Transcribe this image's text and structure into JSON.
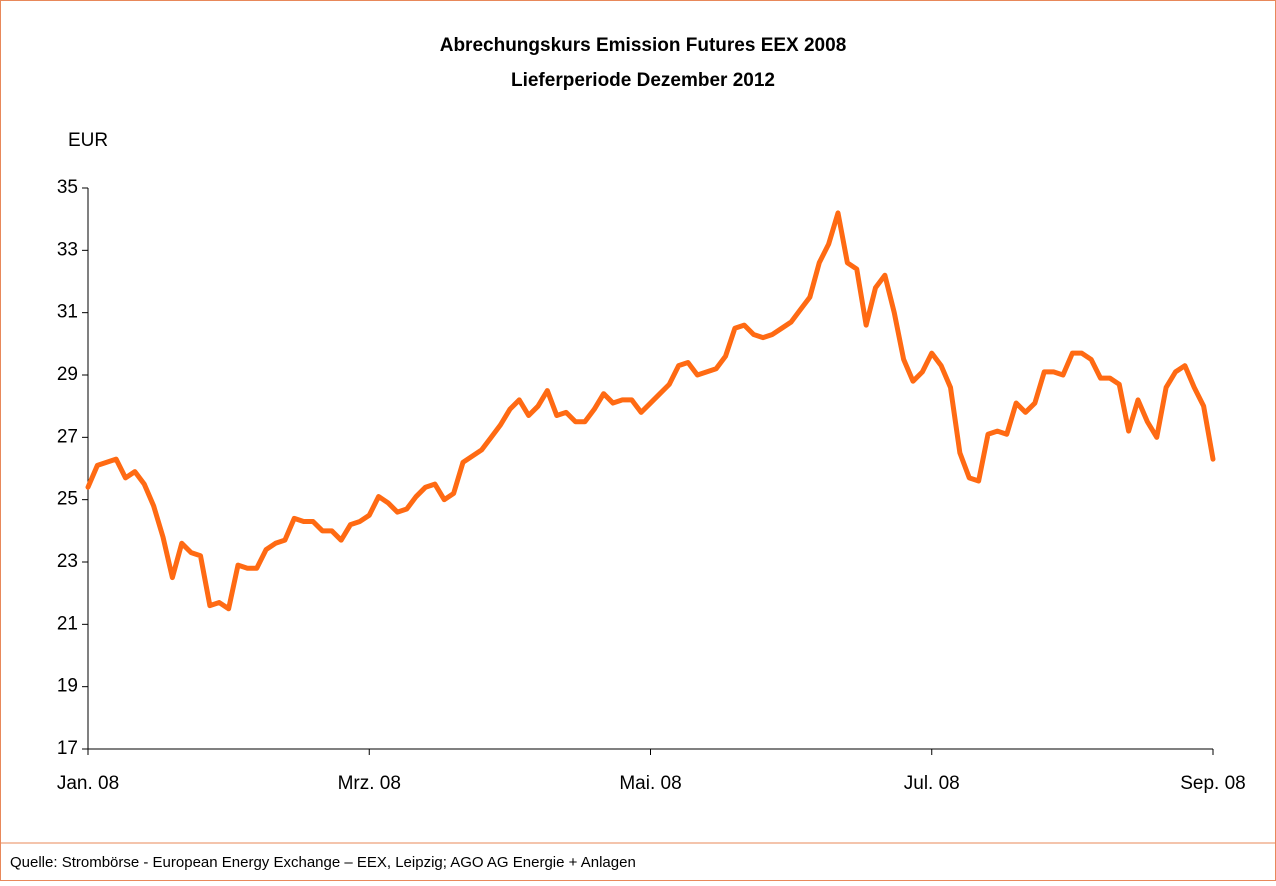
{
  "chart_data": {
    "type": "line",
    "title": "Abrechungskurs Emission Futures EEX 2008",
    "subtitle": "Lieferperiode Dezember 2012",
    "y_label": "EUR",
    "source": "Quelle: Strombörse - European Energy Exchange – EEX, Leipzig; AGO AG Energie + Anlagen",
    "categories": [
      "Jan. 08",
      null,
      null,
      null,
      null,
      null,
      null,
      null,
      null,
      null,
      null,
      null,
      null,
      null,
      null,
      null,
      null,
      null,
      null,
      null,
      null,
      null,
      null,
      null,
      null,
      null,
      null,
      null,
      null,
      null,
      "Mrz. 08",
      null,
      null,
      null,
      null,
      null,
      null,
      null,
      null,
      null,
      null,
      null,
      null,
      null,
      null,
      null,
      null,
      null,
      null,
      null,
      null,
      null,
      null,
      null,
      null,
      null,
      null,
      null,
      null,
      null,
      "Mai. 08",
      null,
      null,
      null,
      null,
      null,
      null,
      null,
      null,
      null,
      null,
      null,
      null,
      null,
      null,
      null,
      null,
      null,
      null,
      null,
      null,
      null,
      null,
      null,
      null,
      null,
      null,
      null,
      null,
      null,
      "Jul. 08",
      null,
      null,
      null,
      null,
      null,
      null,
      null,
      null,
      null,
      null,
      null,
      null,
      null,
      null,
      null,
      null,
      null,
      null,
      null,
      null,
      null,
      null,
      null,
      null,
      null,
      null,
      null,
      null,
      null,
      "Sep. 08"
    ],
    "series": [
      {
        "name": "Abrechungskurs",
        "color": "#ff6a13",
        "values": [
          25.4,
          26.1,
          26.2,
          26.3,
          25.7,
          25.9,
          25.5,
          24.8,
          23.8,
          22.5,
          23.6,
          23.3,
          23.2,
          21.6,
          21.7,
          21.5,
          22.9,
          22.8,
          22.8,
          23.4,
          23.6,
          23.7,
          24.4,
          24.3,
          24.3,
          24.0,
          24.0,
          23.7,
          24.2,
          24.3,
          24.5,
          25.1,
          24.9,
          24.6,
          24.7,
          25.1,
          25.4,
          25.5,
          25.0,
          25.2,
          26.2,
          26.4,
          26.6,
          27.0,
          27.4,
          27.9,
          28.2,
          27.7,
          28.0,
          28.5,
          27.7,
          27.8,
          27.5,
          27.5,
          27.9,
          28.4,
          28.1,
          28.2,
          28.2,
          27.8,
          28.1,
          28.4,
          28.7,
          29.3,
          29.4,
          29.0,
          29.1,
          29.2,
          29.6,
          30.5,
          30.6,
          30.3,
          30.2,
          30.3,
          30.5,
          30.7,
          31.1,
          31.5,
          32.6,
          33.2,
          34.2,
          32.6,
          32.4,
          30.6,
          31.8,
          32.2,
          31.0,
          29.5,
          28.8,
          29.1,
          29.7,
          29.3,
          28.6,
          26.5,
          25.7,
          25.6,
          27.1,
          27.2,
          27.1,
          28.1,
          27.8,
          28.1,
          29.1,
          29.1,
          29.0,
          29.7,
          29.7,
          29.5,
          28.9,
          28.9,
          28.7,
          27.2,
          28.2,
          27.5,
          27.0,
          28.6,
          29.1,
          29.3,
          28.6,
          28.0,
          26.3
        ]
      }
    ],
    "ylim": [
      17,
      35
    ],
    "yticks": [
      17,
      19,
      21,
      23,
      25,
      27,
      29,
      31,
      33,
      35
    ],
    "grid": false
  }
}
